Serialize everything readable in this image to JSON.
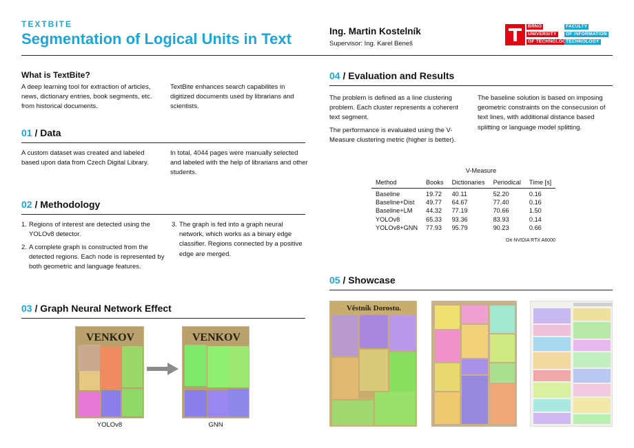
{
  "header": {
    "brand": "TEXTBITE",
    "title": "Segmentation of Logical Units in Text",
    "author": "Ing. Martin Kostelník",
    "supervisor": "Supervisor: Ing. Karel Beneš",
    "logo": {
      "lines": [
        "BRNO",
        "UNIVERSITY",
        "OF TECHNOLOGY",
        "FACULTY",
        "OF INFORMATION",
        "TECHNOLOGY"
      ]
    }
  },
  "colors": {
    "accent": "#1aa6d9",
    "logo_red": "#e30613"
  },
  "what_is": {
    "heading": "What is TextBite?",
    "col1": "A deep learning tool for extraction of articles, news, dictionary entries, book segments, etc. from historical documents.",
    "col2": "TextBite enhances search capabilites in digitized documents used by librarians and scientists."
  },
  "data_section": {
    "num": "01",
    "title": " / Data",
    "col1": "A custom dataset was created and labeled based upon data from Czech Digital Library.",
    "col2": "In total, 4044 pages were manually selected and labeled with the help of librarians and other students."
  },
  "methodology": {
    "num": "02",
    "title": " / Methodology",
    "steps": [
      {
        "n": "1.",
        "text": "Regions of interest are detected using the YOLOv8 detector."
      },
      {
        "n": "2.",
        "text": "A complete graph is constructed from the detected regions. Each node is represented by both geometric and language features."
      },
      {
        "n": "3.",
        "text": "The graph is fed into a graph neural network, which works as a binary edge classifier. Regions connected by a positive edge are merged."
      }
    ]
  },
  "gnn_effect": {
    "num": "03",
    "title": " / Graph Neural Network Effect",
    "masthead": "VENKOV",
    "left_caption": "YOLOv8",
    "right_caption": "GNN"
  },
  "evaluation": {
    "num": "04",
    "title": " / Evaluation and Results",
    "p1": "The problem is defined as a line clustering problem. Each cluster represents a coherent text segment.",
    "p2": "The performance is evaluated using the V-Measure clustering metric (higher is better).",
    "p3": "The baseline solution is based on imposing geometric constraints on the consecusion of text lines, with additional distance based splitting or language model splitting.",
    "table": {
      "group_header": "V-Measure",
      "columns": [
        "Method",
        "Books",
        "Dictionaries",
        "Periodical",
        "Time [s]"
      ],
      "rows": [
        [
          "Baseline",
          "19.72",
          "40.11",
          "52.20",
          "0.16"
        ],
        [
          "Baseline+Dist",
          "49.77",
          "64.67",
          "77.40",
          "0.16"
        ],
        [
          "Baseline+LM",
          "44.32",
          "77.19",
          "70.66",
          "1.50"
        ],
        [
          "YOLOv8",
          "65.33",
          "93.36",
          "83.93",
          "0.14"
        ],
        [
          "YOLOv8+GNN",
          "77.93",
          "95.79",
          "90.23",
          "0.66"
        ]
      ],
      "note": "On NVIDIA RTX A6000"
    }
  },
  "showcase": {
    "num": "05",
    "title": " / Showcase",
    "masthead": "Věstník Dorostu."
  }
}
